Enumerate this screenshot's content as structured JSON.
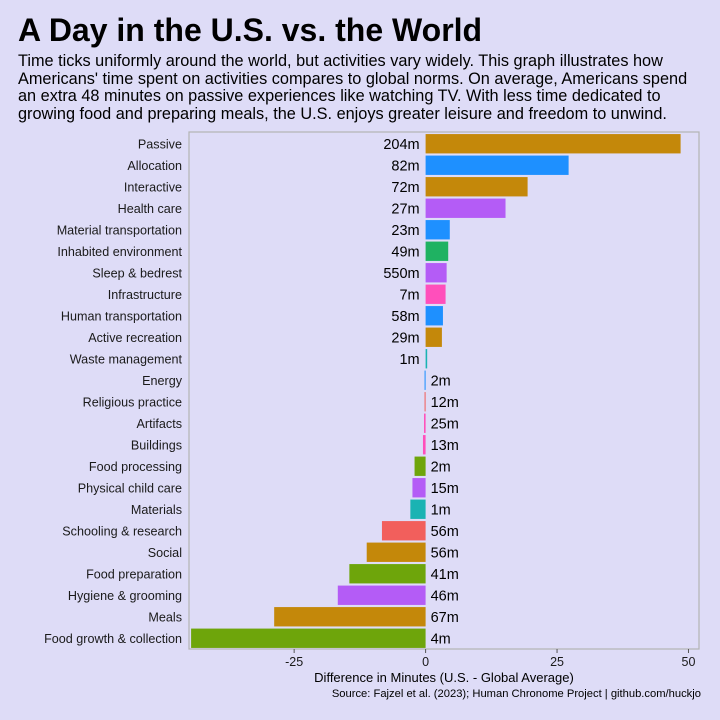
{
  "chart_data": {
    "type": "bar",
    "orientation": "horizontal",
    "title": "A Day in the U.S. vs. the World",
    "subtitle": "Time ticks uniformly around the world, but activities vary widely. This graph illustrates how Americans' time spent on activities compares to global norms. On average, Americans spend an extra 48 minutes on passive experiences like watching TV. With less time dedicated to growing food and preparing meals, the U.S. enjoys greater leisure and freedom to unwind.",
    "xlabel": "Difference in Minutes (U.S. - Global Average)",
    "ylabel": "",
    "caption": "Source: Fajzel et al. (2023); Human Chronome Project | github.com/huckjo",
    "xlim": [
      -45,
      52
    ],
    "xticks": [
      -25,
      0,
      25,
      50
    ],
    "grid": false,
    "categories": [
      "Passive",
      "Allocation",
      "Interactive",
      "Health care",
      "Material transportation",
      "Inhabited environment",
      "Sleep & bedrest",
      "Infrastructure",
      "Human transportation",
      "Active recreation",
      "Waste management",
      "Energy",
      "Religious practice",
      "Artifacts",
      "Buildings",
      "Food processing",
      "Physical child care",
      "Materials",
      "Schooling & research",
      "Social",
      "Food preparation",
      "Hygiene & grooming",
      "Meals",
      "Food growth & collection"
    ],
    "values": [
      48.5,
      27.2,
      19.4,
      15.2,
      4.6,
      4.3,
      4.0,
      3.8,
      3.3,
      3.1,
      0.3,
      -0.2,
      -0.2,
      -0.3,
      -0.5,
      -2.1,
      -2.5,
      -2.9,
      -8.3,
      -11.2,
      -14.5,
      -16.7,
      -28.8,
      -44.6
    ],
    "bar_labels": [
      "204m",
      "82m",
      "72m",
      "27m",
      "23m",
      "49m",
      "550m",
      "7m",
      "58m",
      "29m",
      "1m",
      "2m",
      "12m",
      "25m",
      "13m",
      "2m",
      "15m",
      "1m",
      "56m",
      "56m",
      "41m",
      "46m",
      "67m",
      "4m"
    ],
    "colors": [
      "#c4880a",
      "#1e90ff",
      "#c4880a",
      "#b45cf6",
      "#1e90ff",
      "#1fb262",
      "#b45cf6",
      "#ff4fbb",
      "#1e90ff",
      "#c4880a",
      "#1ab3b3",
      "#1e90ff",
      "#f25f5c",
      "#ff4fbb",
      "#ff4fbb",
      "#6ea50b",
      "#b45cf6",
      "#1ab3b3",
      "#f25f5c",
      "#c4880a",
      "#6ea50b",
      "#b45cf6",
      "#c4880a",
      "#6ea50b"
    ],
    "background_color": "#dedcf7"
  }
}
